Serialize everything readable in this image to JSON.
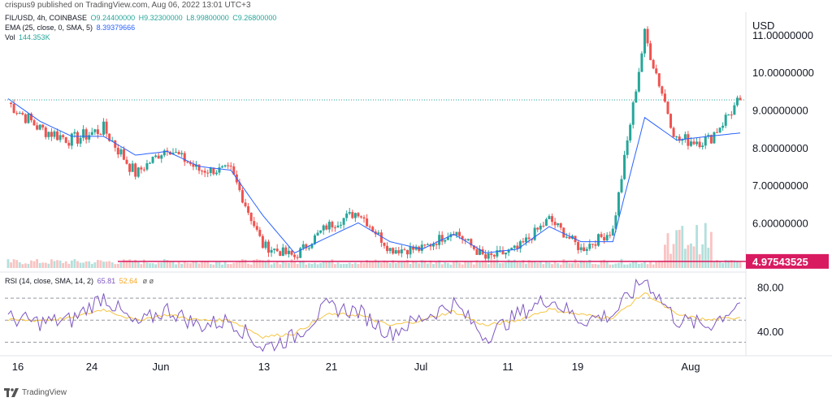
{
  "header": {
    "published_by": "crispus9 published on TradingView.com, Aug 06, 2022 13:01 UTC+3"
  },
  "legend": {
    "symbol": "FIL/USD, 4h, COINBASE",
    "ohlc": {
      "O": "O9.24400000",
      "H": "H9.32300000",
      "L": "L8.99800000",
      "C": "C9.26800000"
    },
    "ema_label": "EMA (25, close, 0, SMA, 5)",
    "ema_value": "8.39379666",
    "vol_label": "Vol",
    "vol_value": "144.353K",
    "rsi_label": "RSI (14, close, SMA, 14, 2)",
    "rsi_value": "65.81",
    "rsi_ma_value": "52.64",
    "rsi_extra": "ø ø"
  },
  "price_axis": {
    "currency": "USD",
    "ticks": [
      "11.00000000",
      "10.00000000",
      "9.00000000",
      "8.00000000",
      "7.00000000",
      "6.00000000"
    ],
    "support_label": "4.97543525"
  },
  "rsi_axis": {
    "ticks": [
      "80.00",
      "40.00"
    ]
  },
  "time_axis": {
    "ticks": [
      "16",
      "24",
      "Jun",
      "13",
      "21",
      "Jul",
      "11",
      "19",
      "Aug"
    ]
  },
  "footer": {
    "brand": "TradingView"
  },
  "colors": {
    "up": "#26a69a",
    "down": "#ef5350",
    "ema": "#2962ff",
    "support": "#d81b60",
    "rsi": "#7e57c2",
    "rsi_ma": "#f5c542",
    "last_price_line": "#26a69a"
  },
  "chart_data": [
    {
      "type": "candlestick",
      "title": "FIL/USD, 4h, COINBASE",
      "ylabel": "USD",
      "ylim": [
        4.8,
        11.6
      ],
      "x": [
        "May 14",
        "May 16",
        "May 20",
        "May 24",
        "May 28",
        "Jun 1",
        "Jun 5",
        "Jun 9",
        "Jun 13",
        "Jun 17",
        "Jun 21",
        "Jun 25",
        "Jun 29",
        "Jul 3",
        "Jul 7",
        "Jul 11",
        "Jul 15",
        "Jul 19",
        "Jul 23",
        "Jul 27",
        "Jul 31",
        "Aug 2",
        "Aug 4",
        "Aug 6"
      ],
      "close": [
        9.2,
        8.5,
        8.2,
        8.5,
        7.3,
        8.0,
        7.4,
        7.4,
        5.4,
        5.1,
        5.9,
        6.3,
        5.3,
        5.3,
        5.8,
        5.05,
        5.3,
        6.1,
        5.3,
        5.8,
        11.0,
        8.2,
        8.2,
        9.27
      ],
      "ema25": [
        9.3,
        8.7,
        8.3,
        8.3,
        7.8,
        7.9,
        7.5,
        7.4,
        6.2,
        5.2,
        5.6,
        6.0,
        5.5,
        5.3,
        5.7,
        5.2,
        5.3,
        5.9,
        5.5,
        5.5,
        8.8,
        8.2,
        8.3,
        8.39
      ],
      "support_line": 4.97543525,
      "last_price": 9.268
    },
    {
      "type": "line",
      "title": "RSI (14, close, SMA, 14, 2)",
      "ylim": [
        20,
        90
      ],
      "bands": [
        70,
        50,
        30
      ],
      "series": [
        {
          "name": "RSI",
          "values": [
            52,
            48,
            50,
            72,
            45,
            60,
            45,
            50,
            25,
            35,
            62,
            58,
            38,
            52,
            65,
            35,
            55,
            70,
            50,
            55,
            88,
            50,
            45,
            65.81
          ]
        },
        {
          "name": "RSI MA",
          "values": [
            50,
            50,
            52,
            60,
            50,
            55,
            50,
            50,
            35,
            38,
            55,
            55,
            45,
            50,
            58,
            45,
            50,
            60,
            55,
            52,
            75,
            55,
            50,
            52.64
          ]
        }
      ]
    }
  ]
}
